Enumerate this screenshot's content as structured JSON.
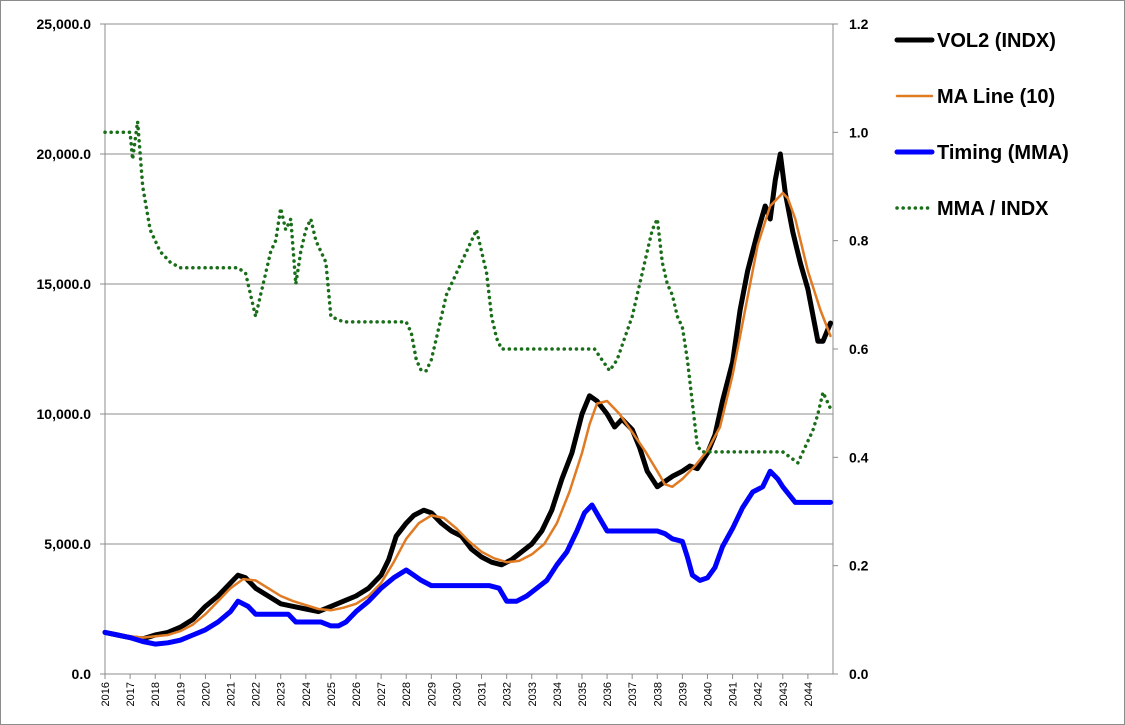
{
  "chart_data": {
    "type": "line",
    "title": "",
    "xlabel": "",
    "ylabel": "",
    "ylabel_right": "",
    "x_categories": [
      "2016",
      "2017",
      "2018",
      "2019",
      "2020",
      "2021",
      "2022",
      "2023",
      "2024",
      "2025",
      "2026",
      "2027",
      "2028",
      "2029",
      "2030",
      "2031",
      "2032",
      "2033",
      "2034",
      "2035",
      "2036",
      "2037",
      "2038",
      "2039",
      "2040",
      "2041",
      "2042",
      "2043",
      "2044"
    ],
    "xlim": [
      2016,
      2045
    ],
    "ylim_left": [
      0,
      25000
    ],
    "yticks_left": [
      "0.0",
      "5,000.0",
      "10,000.0",
      "15,000.0",
      "20,000.0",
      "25,000.0"
    ],
    "ylim_right": [
      0,
      1.2
    ],
    "yticks_right": [
      "0.0",
      "0.2",
      "0.4",
      "0.6",
      "0.8",
      "1.0",
      "1.2"
    ],
    "grid": "horizontal",
    "legend_position": "top-right",
    "series": [
      {
        "name": "VOL2 (INDX)",
        "color": "#000000",
        "style": "solid-thick",
        "axis": "left",
        "x": [
          2016.0,
          2016.5,
          2017.0,
          2017.5,
          2018.0,
          2018.5,
          2019.0,
          2019.5,
          2020.0,
          2020.5,
          2021.0,
          2021.3,
          2021.6,
          2022.0,
          2022.5,
          2023.0,
          2023.5,
          2024.0,
          2024.5,
          2025.0,
          2025.5,
          2026.0,
          2026.5,
          2027.0,
          2027.3,
          2027.6,
          2028.0,
          2028.3,
          2028.7,
          2029.0,
          2029.4,
          2029.8,
          2030.2,
          2030.6,
          2031.0,
          2031.4,
          2031.8,
          2032.2,
          2032.6,
          2033.0,
          2033.4,
          2033.8,
          2034.2,
          2034.6,
          2035.0,
          2035.3,
          2035.6,
          2036.0,
          2036.3,
          2036.6,
          2037.0,
          2037.3,
          2037.6,
          2038.0,
          2038.3,
          2038.6,
          2039.0,
          2039.3,
          2039.6,
          2040.0,
          2040.3,
          2040.6,
          2041.0,
          2041.3,
          2041.6,
          2042.0,
          2042.3,
          2042.5,
          2042.7,
          2042.9,
          2043.1,
          2043.4,
          2043.7,
          2044.0,
          2044.2,
          2044.4,
          2044.6,
          2044.9
        ],
        "values": [
          1600,
          1500,
          1400,
          1350,
          1500,
          1600,
          1800,
          2100,
          2600,
          3000,
          3500,
          3800,
          3700,
          3300,
          3000,
          2700,
          2600,
          2500,
          2400,
          2600,
          2800,
          3000,
          3300,
          3800,
          4400,
          5300,
          5800,
          6100,
          6300,
          6200,
          5800,
          5500,
          5300,
          4800,
          4500,
          4300,
          4200,
          4400,
          4700,
          5000,
          5500,
          6300,
          7500,
          8500,
          10000,
          10700,
          10500,
          10000,
          9500,
          9800,
          9400,
          8700,
          7800,
          7200,
          7400,
          7600,
          7800,
          8000,
          7900,
          8500,
          9200,
          10500,
          12000,
          14000,
          15500,
          17000,
          18000,
          17500,
          19000,
          20000,
          18500,
          17000,
          15800,
          14800,
          13800,
          12800,
          12800,
          13500
        ]
      },
      {
        "name": "MA Line (10)",
        "color": "#e07b24",
        "style": "solid",
        "axis": "left",
        "x": [
          2016.0,
          2016.5,
          2017.0,
          2017.5,
          2018.0,
          2018.5,
          2019.0,
          2019.5,
          2020.0,
          2020.5,
          2021.0,
          2021.5,
          2022.0,
          2022.5,
          2023.0,
          2023.5,
          2024.0,
          2024.5,
          2025.0,
          2025.5,
          2026.0,
          2026.5,
          2027.0,
          2027.5,
          2028.0,
          2028.5,
          2029.0,
          2029.5,
          2030.0,
          2030.5,
          2031.0,
          2031.5,
          2032.0,
          2032.5,
          2033.0,
          2033.5,
          2034.0,
          2034.5,
          2035.0,
          2035.3,
          2035.6,
          2036.0,
          2036.5,
          2037.0,
          2037.5,
          2038.0,
          2038.3,
          2038.6,
          2039.0,
          2039.5,
          2040.0,
          2040.5,
          2041.0,
          2041.5,
          2042.0,
          2042.5,
          2043.0,
          2043.2,
          2043.5,
          2044.0,
          2044.5,
          2044.9
        ],
        "values": [
          1600,
          1550,
          1450,
          1400,
          1450,
          1500,
          1650,
          1900,
          2300,
          2800,
          3300,
          3650,
          3600,
          3300,
          3000,
          2800,
          2650,
          2500,
          2450,
          2550,
          2700,
          3000,
          3500,
          4300,
          5200,
          5800,
          6100,
          6000,
          5600,
          5100,
          4700,
          4450,
          4300,
          4350,
          4600,
          5000,
          5800,
          7000,
          8500,
          9600,
          10400,
          10500,
          10000,
          9300,
          8600,
          7800,
          7300,
          7200,
          7500,
          8000,
          8600,
          9500,
          11500,
          14000,
          16500,
          18000,
          18500,
          18300,
          17500,
          15500,
          14000,
          13000
        ]
      },
      {
        "name": "Timing (MMA)",
        "color": "#0000ff",
        "style": "solid-thick",
        "axis": "left",
        "x": [
          2016.0,
          2016.5,
          2017.0,
          2017.5,
          2018.0,
          2018.5,
          2019.0,
          2019.5,
          2020.0,
          2020.5,
          2021.0,
          2021.3,
          2021.7,
          2022.0,
          2022.5,
          2023.0,
          2023.3,
          2023.6,
          2024.0,
          2024.3,
          2024.6,
          2025.0,
          2025.3,
          2025.6,
          2026.0,
          2026.5,
          2027.0,
          2027.5,
          2028.0,
          2028.3,
          2028.6,
          2029.0,
          2029.5,
          2030.0,
          2030.5,
          2031.0,
          2031.3,
          2031.7,
          2032.0,
          2032.4,
          2032.8,
          2033.2,
          2033.6,
          2034.0,
          2034.4,
          2034.8,
          2035.1,
          2035.4,
          2035.7,
          2036.0,
          2036.5,
          2037.0,
          2037.5,
          2038.0,
          2038.3,
          2038.6,
          2039.0,
          2039.2,
          2039.4,
          2039.7,
          2040.0,
          2040.3,
          2040.6,
          2041.0,
          2041.4,
          2041.8,
          2042.2,
          2042.5,
          2042.8,
          2043.0,
          2043.5,
          2044.0,
          2044.5,
          2044.9
        ],
        "values": [
          1600,
          1500,
          1400,
          1250,
          1150,
          1200,
          1300,
          1500,
          1700,
          2000,
          2400,
          2800,
          2600,
          2300,
          2300,
          2300,
          2300,
          2000,
          2000,
          2000,
          2000,
          1850,
          1850,
          2000,
          2400,
          2800,
          3300,
          3700,
          4000,
          3800,
          3600,
          3400,
          3400,
          3400,
          3400,
          3400,
          3400,
          3300,
          2800,
          2800,
          3000,
          3300,
          3600,
          4200,
          4700,
          5500,
          6200,
          6500,
          6000,
          5500,
          5500,
          5500,
          5500,
          5500,
          5400,
          5200,
          5100,
          4500,
          3800,
          3600,
          3700,
          4100,
          4900,
          5600,
          6400,
          7000,
          7200,
          7800,
          7500,
          7200,
          6600,
          6600,
          6600,
          6600
        ]
      },
      {
        "name": "MMA / INDX",
        "color": "#1a6e1a",
        "style": "dotted",
        "axis": "right",
        "x": [
          2016.0,
          2016.5,
          2017.0,
          2017.1,
          2017.3,
          2017.5,
          2017.8,
          2018.2,
          2018.6,
          2019.0,
          2019.5,
          2020.0,
          2020.5,
          2021.0,
          2021.3,
          2021.6,
          2021.8,
          2022.0,
          2022.2,
          2022.4,
          2022.6,
          2022.8,
          2023.0,
          2023.2,
          2023.4,
          2023.6,
          2023.8,
          2024.0,
          2024.2,
          2024.4,
          2024.6,
          2024.8,
          2025.0,
          2025.5,
          2026.0,
          2026.5,
          2027.0,
          2027.5,
          2028.0,
          2028.2,
          2028.4,
          2028.6,
          2028.8,
          2029.0,
          2029.2,
          2029.4,
          2029.6,
          2029.8,
          2030.0,
          2030.2,
          2030.4,
          2030.6,
          2030.8,
          2031.0,
          2031.2,
          2031.4,
          2031.6,
          2031.8,
          2032.0,
          2032.5,
          2033.0,
          2033.5,
          2034.0,
          2034.5,
          2035.0,
          2035.5,
          2035.8,
          2036.1,
          2036.4,
          2036.7,
          2037.0,
          2037.2,
          2037.4,
          2037.6,
          2037.8,
          2038.0,
          2038.2,
          2038.4,
          2038.6,
          2038.8,
          2039.0,
          2039.2,
          2039.4,
          2039.6,
          2039.8,
          2040.0,
          2040.5,
          2041.0,
          2041.5,
          2042.0,
          2042.5,
          2043.0,
          2043.3,
          2043.6,
          2043.9,
          2044.2,
          2044.4,
          2044.6,
          2044.9
        ],
        "values": [
          1.0,
          1.0,
          1.0,
          0.95,
          1.02,
          0.9,
          0.82,
          0.78,
          0.76,
          0.75,
          0.75,
          0.75,
          0.75,
          0.75,
          0.75,
          0.74,
          0.7,
          0.66,
          0.7,
          0.74,
          0.78,
          0.8,
          0.86,
          0.82,
          0.84,
          0.72,
          0.78,
          0.82,
          0.84,
          0.8,
          0.78,
          0.76,
          0.66,
          0.65,
          0.65,
          0.65,
          0.65,
          0.65,
          0.65,
          0.63,
          0.58,
          0.56,
          0.56,
          0.58,
          0.62,
          0.66,
          0.7,
          0.72,
          0.74,
          0.76,
          0.78,
          0.8,
          0.82,
          0.78,
          0.74,
          0.66,
          0.62,
          0.6,
          0.6,
          0.6,
          0.6,
          0.6,
          0.6,
          0.6,
          0.6,
          0.6,
          0.58,
          0.56,
          0.58,
          0.62,
          0.66,
          0.7,
          0.74,
          0.78,
          0.82,
          0.84,
          0.76,
          0.72,
          0.7,
          0.66,
          0.64,
          0.58,
          0.5,
          0.42,
          0.41,
          0.41,
          0.41,
          0.41,
          0.41,
          0.41,
          0.41,
          0.41,
          0.4,
          0.39,
          0.42,
          0.45,
          0.48,
          0.52,
          0.49
        ]
      }
    ]
  }
}
